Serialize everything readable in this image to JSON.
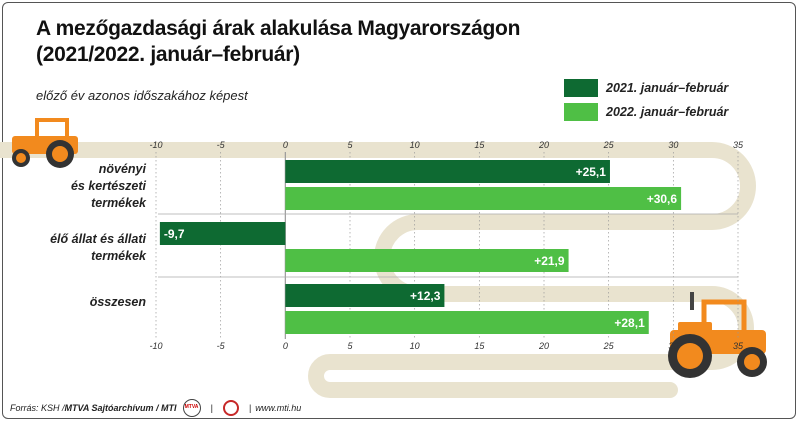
{
  "title_line1": "A mezőgazdasági árak alakulása Magyarországon",
  "title_line2": "(2021/2022. január–február)",
  "subtitle": "előző év azonos időszakához képest",
  "colors": {
    "series_2021": "#0e6a32",
    "series_2022": "#4fbf45",
    "band": "#e9e3cf",
    "tractor": "#f28a1e",
    "grid": "#999999"
  },
  "footer": {
    "source": "Forrás: KSH / ",
    "agency": "MTVA Sajtóarchívum / MTI",
    "mti_logo": "MTVA",
    "website": "www.mti.hu"
  },
  "chart_data": {
    "type": "bar",
    "orientation": "horizontal",
    "categories": [
      [
        "növényi",
        "és kertészeti",
        "termékek"
      ],
      [
        "élő állat és állati",
        "termékek"
      ],
      [
        "összesen"
      ]
    ],
    "series": [
      {
        "name": "2021. január–február",
        "values": [
          25.1,
          -9.7,
          12.3
        ],
        "labels": [
          "+25,1",
          "-9,7",
          "+12,3"
        ]
      },
      {
        "name": "2022. január–február",
        "values": [
          30.6,
          21.9,
          28.1
        ],
        "labels": [
          "+30,6",
          "+21,9",
          "+28,1"
        ]
      }
    ],
    "xlim": [
      -10,
      35
    ],
    "xticks": [
      -10,
      -5,
      0,
      5,
      10,
      15,
      20,
      25,
      30,
      35
    ],
    "xtick_labels": [
      "-10",
      "-5",
      "0",
      "5",
      "10",
      "15",
      "20",
      "25",
      "30",
      "35"
    ],
    "grid": true,
    "legend_position": "top-right"
  }
}
